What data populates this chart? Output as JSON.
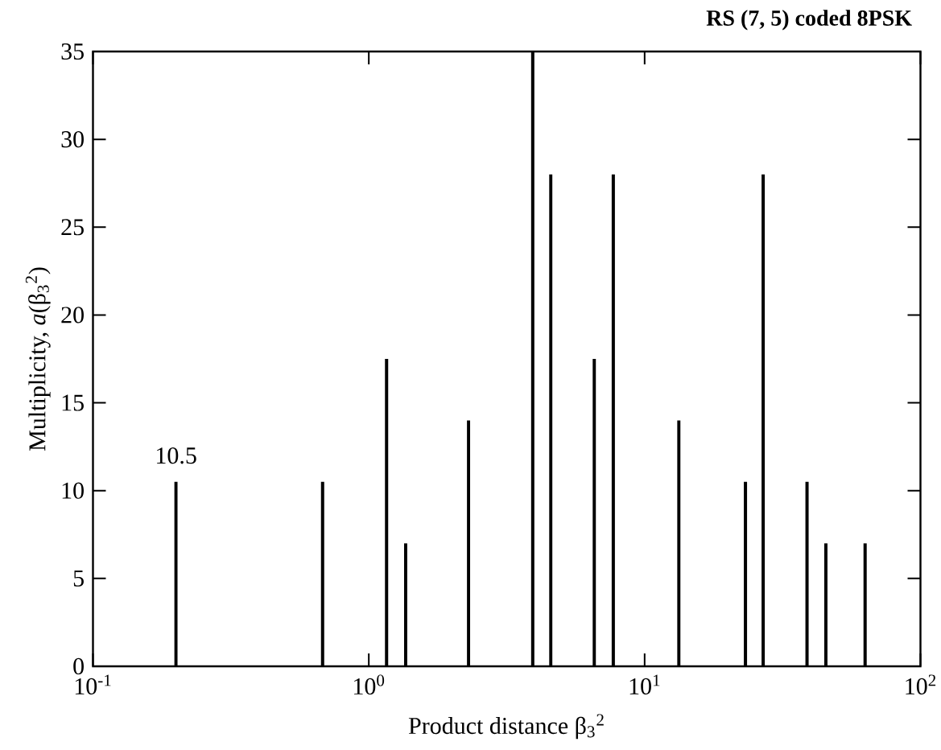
{
  "chart_data": {
    "type": "bar",
    "title": "RS (7, 5) coded 8PSK",
    "xlabel": "Product distance β$_{3}$$^{2}$",
    "ylabel": "Multiplicity, *a*(β$_{3}$$^{2}$)",
    "x": [
      0.2,
      0.68,
      1.16,
      1.36,
      2.3,
      3.93,
      4.57,
      6.57,
      7.7,
      13.3,
      23.2,
      26.9,
      38.8,
      45.4,
      63
    ],
    "values": [
      10.5,
      10.5,
      17.5,
      7,
      14,
      35,
      28,
      17.5,
      28,
      14,
      10.5,
      28,
      10.5,
      7,
      7
    ],
    "color": "#000000",
    "log": "x",
    "xlim": [
      0.1,
      100
    ],
    "ylim": [
      0,
      35
    ],
    "xticks": [
      {
        "value": 0.1,
        "label": "10$^{-1}$"
      },
      {
        "value": 1,
        "label": "10$^{0}$"
      },
      {
        "value": 10,
        "label": "10$^{1}$"
      },
      {
        "value": 100,
        "label": "10$^{2}$"
      }
    ],
    "yticks": [
      0,
      5,
      10,
      15,
      20,
      25,
      30,
      35
    ],
    "annotations": [
      {
        "text": "10.5",
        "x": 0.2,
        "y": 10.5
      }
    ]
  }
}
